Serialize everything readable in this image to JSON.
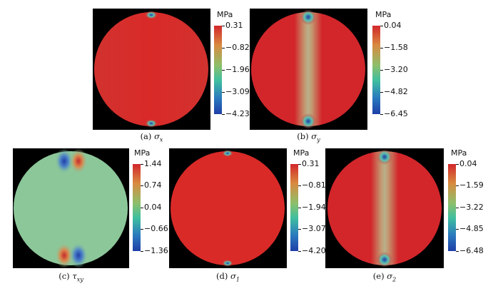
{
  "panels": [
    {
      "caption_prefix": "(a)",
      "symbol": "σ",
      "subscript": "x",
      "unit": "MPa",
      "ticks": [
        "0.31",
        "−0.82",
        "−1.96",
        "−3.09",
        "−4.23"
      ]
    },
    {
      "caption_prefix": "(b)",
      "symbol": "σ",
      "subscript": "y",
      "unit": "MPa",
      "ticks": [
        "0.04",
        "−1.58",
        "−3.20",
        "−4.82",
        "−6.45"
      ]
    },
    {
      "caption_prefix": "(c)",
      "symbol": "τ",
      "subscript": "xy",
      "unit": "MPa",
      "ticks": [
        "1.44",
        "0.74",
        "0.04",
        "−0.66",
        "−1.36"
      ]
    },
    {
      "caption_prefix": "(d)",
      "symbol": "σ",
      "subscript": "1",
      "unit": "MPa",
      "ticks": [
        "0.31",
        "−0.81",
        "−1.94",
        "−3.07",
        "−4.20"
      ]
    },
    {
      "caption_prefix": "(e)",
      "symbol": "σ",
      "subscript": "2",
      "unit": "MPa",
      "ticks": [
        "0.04",
        "−1.59",
        "−3.22",
        "−4.85",
        "−6.48"
      ]
    }
  ],
  "colors": {
    "background_black": "#000000",
    "stress_red": "#d2262b",
    "stress_green": "#8cc79a",
    "stress_blue": "#1f3fa8"
  }
}
